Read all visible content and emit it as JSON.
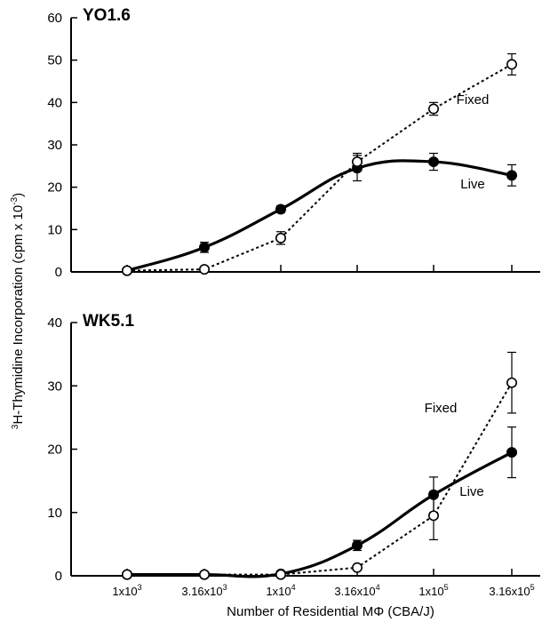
{
  "chart_data": {
    "type": "line",
    "xlabel": "Number of Residential MΦ (CBA/J)",
    "ylabel_parts": {
      "superscript": "3",
      "text": "H-Thymidine Incorporation (cpm x 10",
      "exp": "-3",
      "close": ")"
    },
    "x_scale": "log",
    "x": [
      1000,
      3160,
      10000,
      31600,
      100000,
      316000
    ],
    "x_tick_labels": [
      {
        "base": "1x10",
        "exp": "3"
      },
      {
        "base": "3.16x10",
        "exp": "3"
      },
      {
        "base": "1x10",
        "exp": "4"
      },
      {
        "base": "3.16x10",
        "exp": "4"
      },
      {
        "base": "1x10",
        "exp": "5"
      },
      {
        "base": "3.16x10",
        "exp": "5"
      }
    ],
    "panels": [
      {
        "title": "YO1.6",
        "ylim": [
          0,
          60
        ],
        "yticks": [
          0,
          10,
          20,
          30,
          40,
          50,
          60
        ],
        "series": [
          {
            "name": "Live",
            "style": "solid-filled",
            "values": [
              0.3,
              5.8,
              14.8,
              24.5,
              26.0,
              22.8
            ],
            "errors": [
              0,
              1.2,
              0.8,
              3.0,
              2.0,
              2.5
            ]
          },
          {
            "name": "Fixed",
            "style": "dotted-open",
            "values": [
              0.3,
              0.6,
              8.0,
              26.0,
              38.5,
              49.0
            ],
            "errors": [
              0,
              0,
              1.5,
              2.0,
              1.5,
              2.5
            ]
          }
        ]
      },
      {
        "title": "WK5.1",
        "ylim": [
          0,
          40
        ],
        "yticks": [
          0,
          10,
          20,
          30,
          40
        ],
        "series": [
          {
            "name": "Live",
            "style": "solid-filled",
            "values": [
              0.2,
              0.2,
              0.3,
              4.8,
              12.8,
              19.5
            ],
            "errors": [
              0,
              0,
              0,
              0.8,
              2.8,
              4.0
            ]
          },
          {
            "name": "Fixed",
            "style": "dotted-open",
            "values": [
              0.2,
              0.2,
              0.2,
              1.3,
              9.5,
              30.5
            ],
            "errors": [
              0,
              0,
              0,
              0,
              3.8,
              4.8
            ]
          }
        ]
      }
    ]
  }
}
